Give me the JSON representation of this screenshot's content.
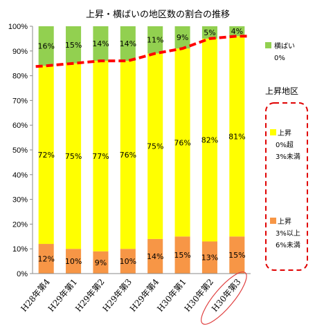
{
  "chart_data": {
    "type": "bar",
    "stacked": true,
    "title": "上昇・横ばいの地区数の割合の推移",
    "categories": [
      "H28年第4",
      "H29年第1",
      "H29年第2",
      "H29年第3",
      "H29年第4",
      "H30年第1",
      "H30年第2",
      "H30年第3"
    ],
    "highlight_category": "H30年第3",
    "series": [
      {
        "name": "上昇 3％以上 6％未満",
        "color": "#f79646",
        "values": [
          12,
          10,
          9,
          10,
          14,
          15,
          13,
          15
        ],
        "labels": [
          "12%",
          "10%",
          "9%",
          "10%",
          "14%",
          "15%",
          "13%",
          "15%"
        ]
      },
      {
        "name": "上昇 0％超 3％未満",
        "color": "#ffff00",
        "values": [
          72,
          75,
          77,
          76,
          75,
          76,
          82,
          81
        ],
        "labels": [
          "72%",
          "75%",
          "77%",
          "76%",
          "75%",
          "76%",
          "82%",
          "81%"
        ]
      },
      {
        "name": "横ばい 0%",
        "color": "#92d050",
        "values": [
          16,
          15,
          14,
          14,
          11,
          9,
          5,
          4
        ],
        "labels": [
          "16%",
          "15%",
          "14%",
          "14%",
          "11%",
          "9%",
          "5%",
          "4%"
        ]
      }
    ],
    "trend_line": {
      "color": "#ff0000",
      "style": "dashed",
      "values": [
        84,
        85,
        86,
        86,
        89,
        91,
        95,
        96
      ]
    },
    "ylim": [
      0,
      100
    ],
    "yticks": [
      "0%",
      "10%",
      "20%",
      "30%",
      "40%",
      "50%",
      "60%",
      "70%",
      "80%",
      "90%",
      "100%"
    ],
    "grid": false,
    "legend": {
      "position": "right",
      "entries": [
        {
          "line1": "横ばい",
          "line2": "0%",
          "color": "#92d050"
        },
        {
          "line1": "上昇",
          "line2": "0%超",
          "line3": "3%未満",
          "color": "#ffff00"
        },
        {
          "line1": "上昇",
          "line2": "3%以上",
          "line3": "6%未満",
          "color": "#f79646"
        }
      ],
      "group_title": "上昇地区",
      "group_box_color": "#e00000"
    }
  }
}
